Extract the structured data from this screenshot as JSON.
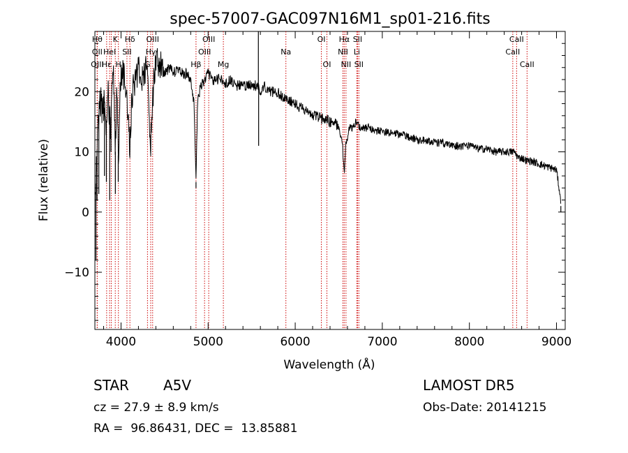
{
  "chart_data": {
    "type": "line",
    "title": "spec-57007-GAC097N16M1_sp01-216.fits",
    "xlabel": "Wavelength (Å)",
    "ylabel": "Flux (relative)",
    "xlim": [
      3700,
      9100
    ],
    "ylim": [
      -19.5,
      30
    ],
    "x_ticks": [
      4000,
      5000,
      6000,
      7000,
      8000,
      9000
    ],
    "y_ticks": [
      -10,
      0,
      10,
      20
    ],
    "grid": false,
    "legend": "none",
    "line_color": "#000000",
    "marker_color": "#cc0000",
    "spectrum_nodes": [
      [
        3705,
        1
      ],
      [
        3720,
        9
      ],
      [
        3735,
        13
      ],
      [
        3750,
        17
      ],
      [
        3770,
        19
      ],
      [
        3790,
        16
      ],
      [
        3805,
        18
      ],
      [
        3835,
        14
      ],
      [
        3850,
        20
      ],
      [
        3880,
        14
      ],
      [
        3900,
        21
      ],
      [
        3915,
        23
      ],
      [
        3935,
        10
      ],
      [
        3950,
        22
      ],
      [
        3970,
        8
      ],
      [
        3990,
        22
      ],
      [
        4020,
        23
      ],
      [
        4060,
        21
      ],
      [
        4100,
        11
      ],
      [
        4130,
        20
      ],
      [
        4160,
        22
      ],
      [
        4200,
        24
      ],
      [
        4250,
        22
      ],
      [
        4300,
        24
      ],
      [
        4340,
        11
      ],
      [
        4380,
        23
      ],
      [
        4420,
        25
      ],
      [
        4460,
        24
      ],
      [
        4500,
        23
      ],
      [
        4550,
        24
      ],
      [
        4600,
        23
      ],
      [
        4650,
        24
      ],
      [
        4700,
        23
      ],
      [
        4750,
        23
      ],
      [
        4800,
        22
      ],
      [
        4840,
        18
      ],
      [
        4861,
        5
      ],
      [
        4880,
        19
      ],
      [
        4920,
        21
      ],
      [
        4960,
        22
      ],
      [
        5000,
        23
      ],
      [
        5050,
        22
      ],
      [
        5100,
        22
      ],
      [
        5150,
        22
      ],
      [
        5200,
        21
      ],
      [
        5250,
        22
      ],
      [
        5300,
        21
      ],
      [
        5350,
        21
      ],
      [
        5400,
        21
      ],
      [
        5450,
        21
      ],
      [
        5500,
        21
      ],
      [
        5550,
        21
      ],
      [
        5577,
        21
      ],
      [
        5600,
        20
      ],
      [
        5650,
        21
      ],
      [
        5700,
        20
      ],
      [
        5750,
        20
      ],
      [
        5800,
        20
      ],
      [
        5850,
        19
      ],
      [
        5890,
        19
      ],
      [
        5950,
        18.5
      ],
      [
        6000,
        18
      ],
      [
        6050,
        17.5
      ],
      [
        6100,
        17
      ],
      [
        6150,
        16.5
      ],
      [
        6200,
        16
      ],
      [
        6250,
        16
      ],
      [
        6300,
        15.5
      ],
      [
        6350,
        15.5
      ],
      [
        6400,
        15
      ],
      [
        6450,
        15
      ],
      [
        6500,
        14
      ],
      [
        6540,
        12
      ],
      [
        6563,
        6
      ],
      [
        6580,
        11
      ],
      [
        6620,
        14
      ],
      [
        6650,
        14
      ],
      [
        6700,
        15
      ],
      [
        6750,
        14
      ],
      [
        6800,
        14
      ],
      [
        6850,
        14
      ],
      [
        6900,
        13.5
      ],
      [
        6950,
        13.5
      ],
      [
        7000,
        13.5
      ],
      [
        7100,
        13
      ],
      [
        7200,
        13
      ],
      [
        7300,
        12.5
      ],
      [
        7400,
        12
      ],
      [
        7500,
        12
      ],
      [
        7600,
        11.5
      ],
      [
        7700,
        11.5
      ],
      [
        7800,
        11
      ],
      [
        7900,
        11
      ],
      [
        8000,
        11
      ],
      [
        8100,
        10.5
      ],
      [
        8200,
        10.5
      ],
      [
        8300,
        10
      ],
      [
        8400,
        10
      ],
      [
        8480,
        10
      ],
      [
        8520,
        10
      ],
      [
        8560,
        9
      ],
      [
        8600,
        9
      ],
      [
        8660,
        8.5
      ],
      [
        8700,
        8.5
      ],
      [
        8800,
        8
      ],
      [
        8900,
        7.5
      ],
      [
        9000,
        7
      ],
      [
        9040,
        3
      ],
      [
        9050,
        1
      ]
    ],
    "spikes": [
      [
        3712,
        -8
      ],
      [
        3725,
        2
      ],
      [
        3745,
        3
      ],
      [
        3810,
        6
      ],
      [
        3832,
        5
      ],
      [
        3870,
        2
      ],
      [
        3885,
        10
      ],
      [
        3935,
        3
      ],
      [
        3968,
        5
      ],
      [
        4100,
        10
      ],
      [
        4340,
        10
      ],
      [
        4861,
        4
      ],
      [
        5577,
        37
      ],
      [
        5580,
        11
      ],
      [
        6563,
        6
      ],
      [
        9050,
        0
      ]
    ],
    "lines": [
      {
        "wavelength": 3727,
        "labels": [
          "Hθ"
        ],
        "rows": [
          0
        ]
      },
      {
        "wavelength": 3727,
        "labels": [
          "OII",
          "OIII"
        ],
        "rows": [
          1,
          2
        ]
      },
      {
        "wavelength": 3835,
        "labels": [
          "Hε"
        ],
        "rows": [
          2
        ]
      },
      {
        "wavelength": 3869,
        "labels": [
          "HeI"
        ],
        "rows": [
          1
        ]
      },
      {
        "wavelength": 3889,
        "labels": [],
        "rows": []
      },
      {
        "wavelength": 3934,
        "labels": [
          "K"
        ],
        "rows": [
          0
        ]
      },
      {
        "wavelength": 3970,
        "labels": [
          "H"
        ],
        "rows": [
          2
        ]
      },
      {
        "wavelength": 4068,
        "labels": [
          "SII"
        ],
        "rows": [
          1
        ]
      },
      {
        "wavelength": 4102,
        "labels": [
          "Hδ"
        ],
        "rows": [
          0
        ]
      },
      {
        "wavelength": 4304,
        "labels": [
          "G"
        ],
        "rows": [
          2
        ]
      },
      {
        "wavelength": 4341,
        "labels": [
          "Hγ"
        ],
        "rows": [
          1
        ]
      },
      {
        "wavelength": 4363,
        "labels": [
          "OIII"
        ],
        "rows": [
          0
        ]
      },
      {
        "wavelength": 4861,
        "labels": [
          "Hβ"
        ],
        "rows": [
          2
        ]
      },
      {
        "wavelength": 4959,
        "labels": [
          "OIII"
        ],
        "rows": [
          1
        ]
      },
      {
        "wavelength": 5007,
        "labels": [
          "OIII"
        ],
        "rows": [
          0
        ]
      },
      {
        "wavelength": 5175,
        "labels": [
          "Mg"
        ],
        "rows": [
          2
        ]
      },
      {
        "wavelength": 5893,
        "labels": [
          "Na"
        ],
        "rows": [
          1
        ]
      },
      {
        "wavelength": 6300,
        "labels": [
          "OI"
        ],
        "rows": [
          0
        ]
      },
      {
        "wavelength": 6364,
        "labels": [
          "OI"
        ],
        "rows": [
          2
        ]
      },
      {
        "wavelength": 6548,
        "labels": [
          "NII"
        ],
        "rows": [
          1
        ]
      },
      {
        "wavelength": 6563,
        "labels": [
          "Hα"
        ],
        "rows": [
          0
        ]
      },
      {
        "wavelength": 6583,
        "labels": [
          "NII"
        ],
        "rows": [
          2
        ]
      },
      {
        "wavelength": 6707,
        "labels": [
          "Li"
        ],
        "rows": [
          1
        ]
      },
      {
        "wavelength": 6716,
        "labels": [
          "SII"
        ],
        "rows": [
          0
        ]
      },
      {
        "wavelength": 6731,
        "labels": [
          "SII"
        ],
        "rows": [
          2
        ]
      },
      {
        "wavelength": 8498,
        "labels": [
          "CaII"
        ],
        "rows": [
          1
        ]
      },
      {
        "wavelength": 8542,
        "labels": [
          "CaII"
        ],
        "rows": [
          0
        ]
      },
      {
        "wavelength": 8662,
        "labels": [
          "CaII"
        ],
        "rows": [
          2
        ]
      }
    ]
  },
  "info": {
    "class_label": "STAR",
    "subclass_label": "A5V",
    "survey": "LAMOST DR5",
    "redshift": "cz = 27.9 ± 8.9 km/s",
    "obs_date": "Obs-Date: 20141215",
    "coords": "RA =  96.86431, DEC =  13.85881"
  }
}
